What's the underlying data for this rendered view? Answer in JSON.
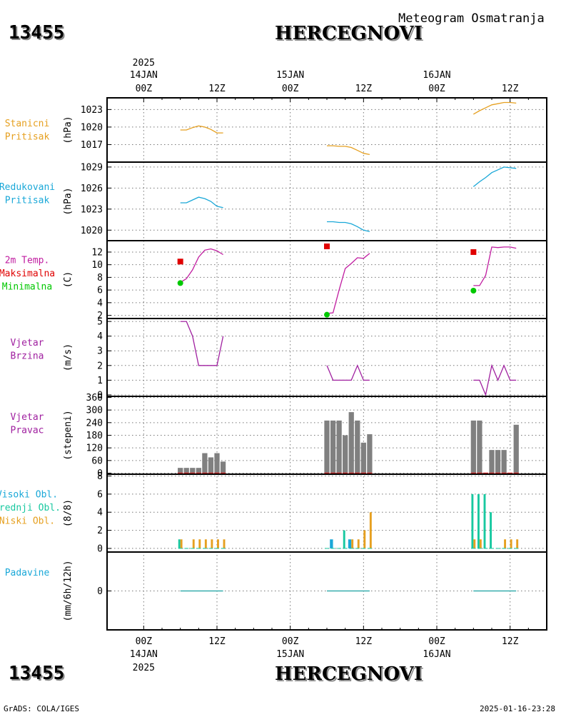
{
  "header": {
    "station_id": "13455",
    "station_name": "HERCEGNOVI",
    "subtitle": "Meteogram Osmatranja"
  },
  "footer": {
    "credit": "GrADS: COLA/IGES",
    "timestamp": "2025-01-16-23:28"
  },
  "time_axis": {
    "year": "2025",
    "days": [
      "14JAN",
      "15JAN",
      "16JAN"
    ],
    "hour_labels": [
      "00Z",
      "12Z"
    ],
    "range_hours": [
      -6,
      66
    ]
  },
  "colors": {
    "pressure_station": "#e6a020",
    "pressure_reduced": "#1aa8d8",
    "temperature": "#c01ca0",
    "tmax": "#e00000",
    "tmin": "#00c800",
    "wind": "#a020a0",
    "wind_dir_bar": "#808080",
    "wind_dir_base": "#d02828",
    "cloud_high": "#1aa8d8",
    "cloud_mid": "#18c8a0",
    "cloud_low": "#e6a020",
    "precip_label": "#1aa8d8",
    "precip_line": "#18a0a0"
  },
  "chart_data": [
    {
      "type": "line",
      "panel": "station_pressure",
      "label_lines": [
        "Stanicni",
        "Pritisak"
      ],
      "ylabel": "(hPa)",
      "yticks": [
        1017,
        1020,
        1023
      ],
      "ylim": [
        1014,
        1025
      ],
      "series": [
        {
          "x": [
            6,
            7,
            8,
            9,
            10,
            11,
            12,
            13
          ],
          "y": [
            1019.5,
            1019.5,
            1019.9,
            1020.2,
            1020.0,
            1019.6,
            1019.0,
            1019.0
          ]
        },
        {
          "x": [
            30,
            31,
            32,
            33,
            34,
            35,
            36,
            37
          ],
          "y": [
            1016.8,
            1016.8,
            1016.7,
            1016.7,
            1016.5,
            1016.0,
            1015.5,
            1015.3
          ]
        },
        {
          "x": [
            54,
            55,
            56,
            57,
            58,
            59,
            60,
            61
          ],
          "y": [
            1022.2,
            1022.8,
            1023.3,
            1023.8,
            1024.0,
            1024.2,
            1024.2,
            1024.1
          ]
        }
      ]
    },
    {
      "type": "line",
      "panel": "reduced_pressure",
      "label_lines": [
        "Redukovani",
        "Pritisak"
      ],
      "ylabel": "(hPa)",
      "yticks": [
        1020,
        1023,
        1026,
        1029
      ],
      "ylim": [
        1018.5,
        1029.7
      ],
      "series": [
        {
          "x": [
            6,
            7,
            8,
            9,
            10,
            11,
            12,
            13
          ],
          "y": [
            1023.9,
            1023.9,
            1024.3,
            1024.7,
            1024.5,
            1024.1,
            1023.4,
            1023.2
          ]
        },
        {
          "x": [
            30,
            31,
            32,
            33,
            34,
            35,
            36,
            37
          ],
          "y": [
            1021.2,
            1021.2,
            1021.1,
            1021.1,
            1020.9,
            1020.5,
            1020.0,
            1019.8
          ]
        },
        {
          "x": [
            54,
            55,
            56,
            57,
            58,
            59,
            60,
            61
          ],
          "y": [
            1026.2,
            1026.9,
            1027.5,
            1028.2,
            1028.6,
            1029.0,
            1028.9,
            1028.8
          ]
        }
      ]
    },
    {
      "type": "line",
      "panel": "temperature",
      "label_lines": [
        "2m Temp.",
        "Maksimalna",
        "Minimalna"
      ],
      "ylabel": "(C)",
      "yticks": [
        2,
        4,
        6,
        8,
        10,
        12
      ],
      "ylim": [
        1.5,
        13.8
      ],
      "series": [
        {
          "x": [
            6,
            7,
            8,
            9,
            10,
            11,
            12,
            13
          ],
          "y": [
            7.2,
            7.8,
            9.2,
            11.2,
            12.3,
            12.5,
            12.2,
            11.6
          ]
        },
        {
          "x": [
            30,
            31,
            32,
            33,
            34,
            35,
            36,
            37
          ],
          "y": [
            2.3,
            2.4,
            6.0,
            9.4,
            10.2,
            11.1,
            11.0,
            11.8
          ]
        },
        {
          "x": [
            54,
            55,
            56,
            57,
            58,
            59,
            60,
            61
          ],
          "y": [
            6.7,
            6.7,
            8.3,
            12.8,
            12.7,
            12.8,
            12.8,
            12.6
          ]
        }
      ],
      "tmax": {
        "x": [
          6,
          30,
          54
        ],
        "y": [
          10.5,
          12.9,
          12.0
        ]
      },
      "tmin": {
        "x": [
          6,
          30,
          54
        ],
        "y": [
          7.1,
          2.1,
          5.9
        ]
      }
    },
    {
      "type": "line",
      "panel": "wind_speed",
      "label_lines": [
        "Vjetar",
        "Brzina"
      ],
      "ylabel": "(m/s)",
      "yticks": [
        0,
        1,
        2,
        3,
        4,
        5
      ],
      "ylim": [
        -0.1,
        5.2
      ],
      "series": [
        {
          "x": [
            6,
            7,
            8,
            9,
            10,
            11,
            12,
            13
          ],
          "y": [
            5,
            5,
            4,
            2,
            2,
            2,
            2,
            4
          ]
        },
        {
          "x": [
            30,
            31,
            32,
            33,
            34,
            35,
            36,
            37
          ],
          "y": [
            2,
            1,
            1,
            1,
            1,
            2,
            1,
            1
          ]
        },
        {
          "x": [
            54,
            55,
            56,
            57,
            58,
            59,
            60,
            61
          ],
          "y": [
            1,
            1,
            0,
            2,
            1,
            2,
            1,
            1
          ]
        }
      ]
    },
    {
      "type": "bar",
      "panel": "wind_direction",
      "label_lines": [
        "Vjetar",
        "Pravac"
      ],
      "ylabel": "(stepeni)",
      "yticks": [
        0,
        60,
        120,
        180,
        240,
        300,
        360
      ],
      "ylim": [
        -5,
        365
      ],
      "x": [
        6,
        7,
        8,
        9,
        10,
        11,
        12,
        13,
        30,
        31,
        32,
        33,
        34,
        35,
        36,
        37,
        54,
        55,
        56,
        57,
        58,
        59,
        60,
        61
      ],
      "values": [
        25,
        25,
        25,
        25,
        95,
        75,
        95,
        55,
        250,
        250,
        250,
        180,
        290,
        250,
        145,
        185,
        250,
        250,
        0,
        110,
        110,
        110,
        0,
        230
      ]
    },
    {
      "type": "bar",
      "panel": "clouds",
      "label_lines": [
        "Visoki Obl.",
        "Srednji Obl.",
        "Niski Obl."
      ],
      "ylabel": "(8/8)",
      "yticks": [
        0,
        2,
        4,
        6,
        8
      ],
      "ylim": [
        -0.4,
        8.2
      ],
      "x": [
        6,
        7,
        8,
        9,
        10,
        11,
        12,
        13,
        30,
        31,
        32,
        33,
        34,
        35,
        36,
        37,
        54,
        55,
        56,
        57,
        58,
        59,
        60,
        61
      ],
      "series": [
        {
          "name": "Visoki Obl.",
          "values": [
            0,
            0,
            0,
            0,
            0,
            0,
            0,
            0,
            0,
            1,
            0,
            0,
            1,
            0,
            0,
            0,
            0,
            0,
            0,
            0,
            0,
            0,
            0,
            0
          ]
        },
        {
          "name": "Srednji Obl.",
          "values": [
            1,
            0,
            0,
            0,
            0,
            0,
            0,
            0,
            0,
            0,
            0,
            2,
            0,
            0,
            0,
            0,
            6,
            6,
            6,
            4,
            0,
            0,
            0,
            0
          ]
        },
        {
          "name": "Niski Obl.",
          "values": [
            1,
            0,
            1,
            1,
            1,
            1,
            1,
            1,
            0,
            0,
            0,
            0,
            1,
            1,
            2,
            4,
            1,
            1,
            0,
            0,
            0,
            1,
            1,
            1
          ]
        }
      ]
    },
    {
      "type": "line",
      "panel": "precipitation",
      "label_lines": [
        "Padavine"
      ],
      "ylabel": "(mm/6h/12h)",
      "yticks": [
        0
      ],
      "ylim": [
        -5,
        5
      ],
      "series": [
        {
          "x": [
            6,
            7,
            8,
            9,
            10,
            11,
            12,
            13
          ],
          "y": [
            0,
            0,
            0,
            0,
            0,
            0,
            0,
            0
          ]
        },
        {
          "x": [
            30,
            31,
            32,
            33,
            34,
            35,
            36,
            37
          ],
          "y": [
            0,
            0,
            0,
            0,
            0,
            0,
            0,
            0
          ]
        },
        {
          "x": [
            54,
            55,
            56,
            57,
            58,
            59,
            60,
            61
          ],
          "y": [
            0,
            0,
            0,
            0,
            0,
            0,
            0,
            0
          ]
        }
      ]
    }
  ]
}
